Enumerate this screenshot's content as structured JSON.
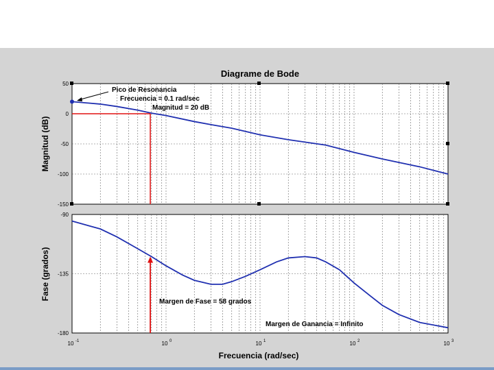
{
  "chart_data": [
    {
      "type": "line",
      "title": "Diagrame de Bode",
      "ylabel": "Magnitud (dB)",
      "xlabel": "",
      "xscale": "log",
      "xlim": [
        0.1,
        1000
      ],
      "ylim": [
        -150,
        50
      ],
      "yticks": [
        50,
        0,
        -50,
        -100,
        -150
      ],
      "ytick_labels": [
        "50",
        "0",
        "-50",
        "-100",
        "-150"
      ],
      "grid": true,
      "series": [
        {
          "name": "",
          "color": "#1f2fb0",
          "x": [
            0.1,
            0.2,
            0.3,
            0.5,
            0.7,
            1,
            2,
            3,
            5,
            10,
            20,
            30,
            50,
            100,
            200,
            500,
            1000
          ],
          "y": [
            20,
            16,
            12,
            6,
            1,
            -3,
            -13,
            -18,
            -24,
            -35,
            -43,
            -47,
            -52,
            -64,
            -75,
            -88,
            -100
          ]
        }
      ],
      "annotations": [
        {
          "label": "Pico de Resonancia",
          "x": 0.1,
          "y": 20
        },
        {
          "label": "Frecuencia = 0.1 rad/sec"
        },
        {
          "label": "Magnitud = 20 dB"
        }
      ]
    },
    {
      "type": "line",
      "title": "",
      "ylabel": "Fase (grados)",
      "xlabel": "Frecuencia (rad/sec)",
      "xscale": "log",
      "xlim": [
        0.1,
        1000
      ],
      "ylim": [
        -180,
        -90
      ],
      "yticks": [
        -90,
        -135,
        -180
      ],
      "ytick_labels": [
        "-90",
        "-135",
        "-180"
      ],
      "xticks": [
        0.1,
        1,
        10,
        100,
        1000
      ],
      "xtick_labels": [
        {
          "base": "10",
          "exp": "-1"
        },
        {
          "base": "10",
          "exp": "0"
        },
        {
          "base": "10",
          "exp": "1"
        },
        {
          "base": "10",
          "exp": "2"
        },
        {
          "base": "10",
          "exp": "3"
        }
      ],
      "grid": true,
      "series": [
        {
          "name": "",
          "color": "#1f2fb0",
          "x": [
            0.1,
            0.2,
            0.3,
            0.5,
            0.7,
            1,
            1.5,
            2,
            3,
            4,
            5,
            7,
            10,
            15,
            20,
            30,
            40,
            50,
            70,
            100,
            150,
            200,
            300,
            500,
            1000
          ],
          "y": [
            -95,
            -101,
            -107,
            -116,
            -122,
            -129,
            -136,
            -140,
            -143,
            -143,
            -141,
            -137,
            -132,
            -126,
            -123,
            -122,
            -123,
            -126,
            -132,
            -142,
            -152,
            -159,
            -166,
            -172,
            -176
          ]
        }
      ],
      "annotations": [
        {
          "label": "Margen de Fase = 58 grados",
          "x": 0.68,
          "y": -122
        },
        {
          "label": "Margen de Ganancia = Infinito"
        }
      ]
    }
  ],
  "marker_color": "#e01010"
}
